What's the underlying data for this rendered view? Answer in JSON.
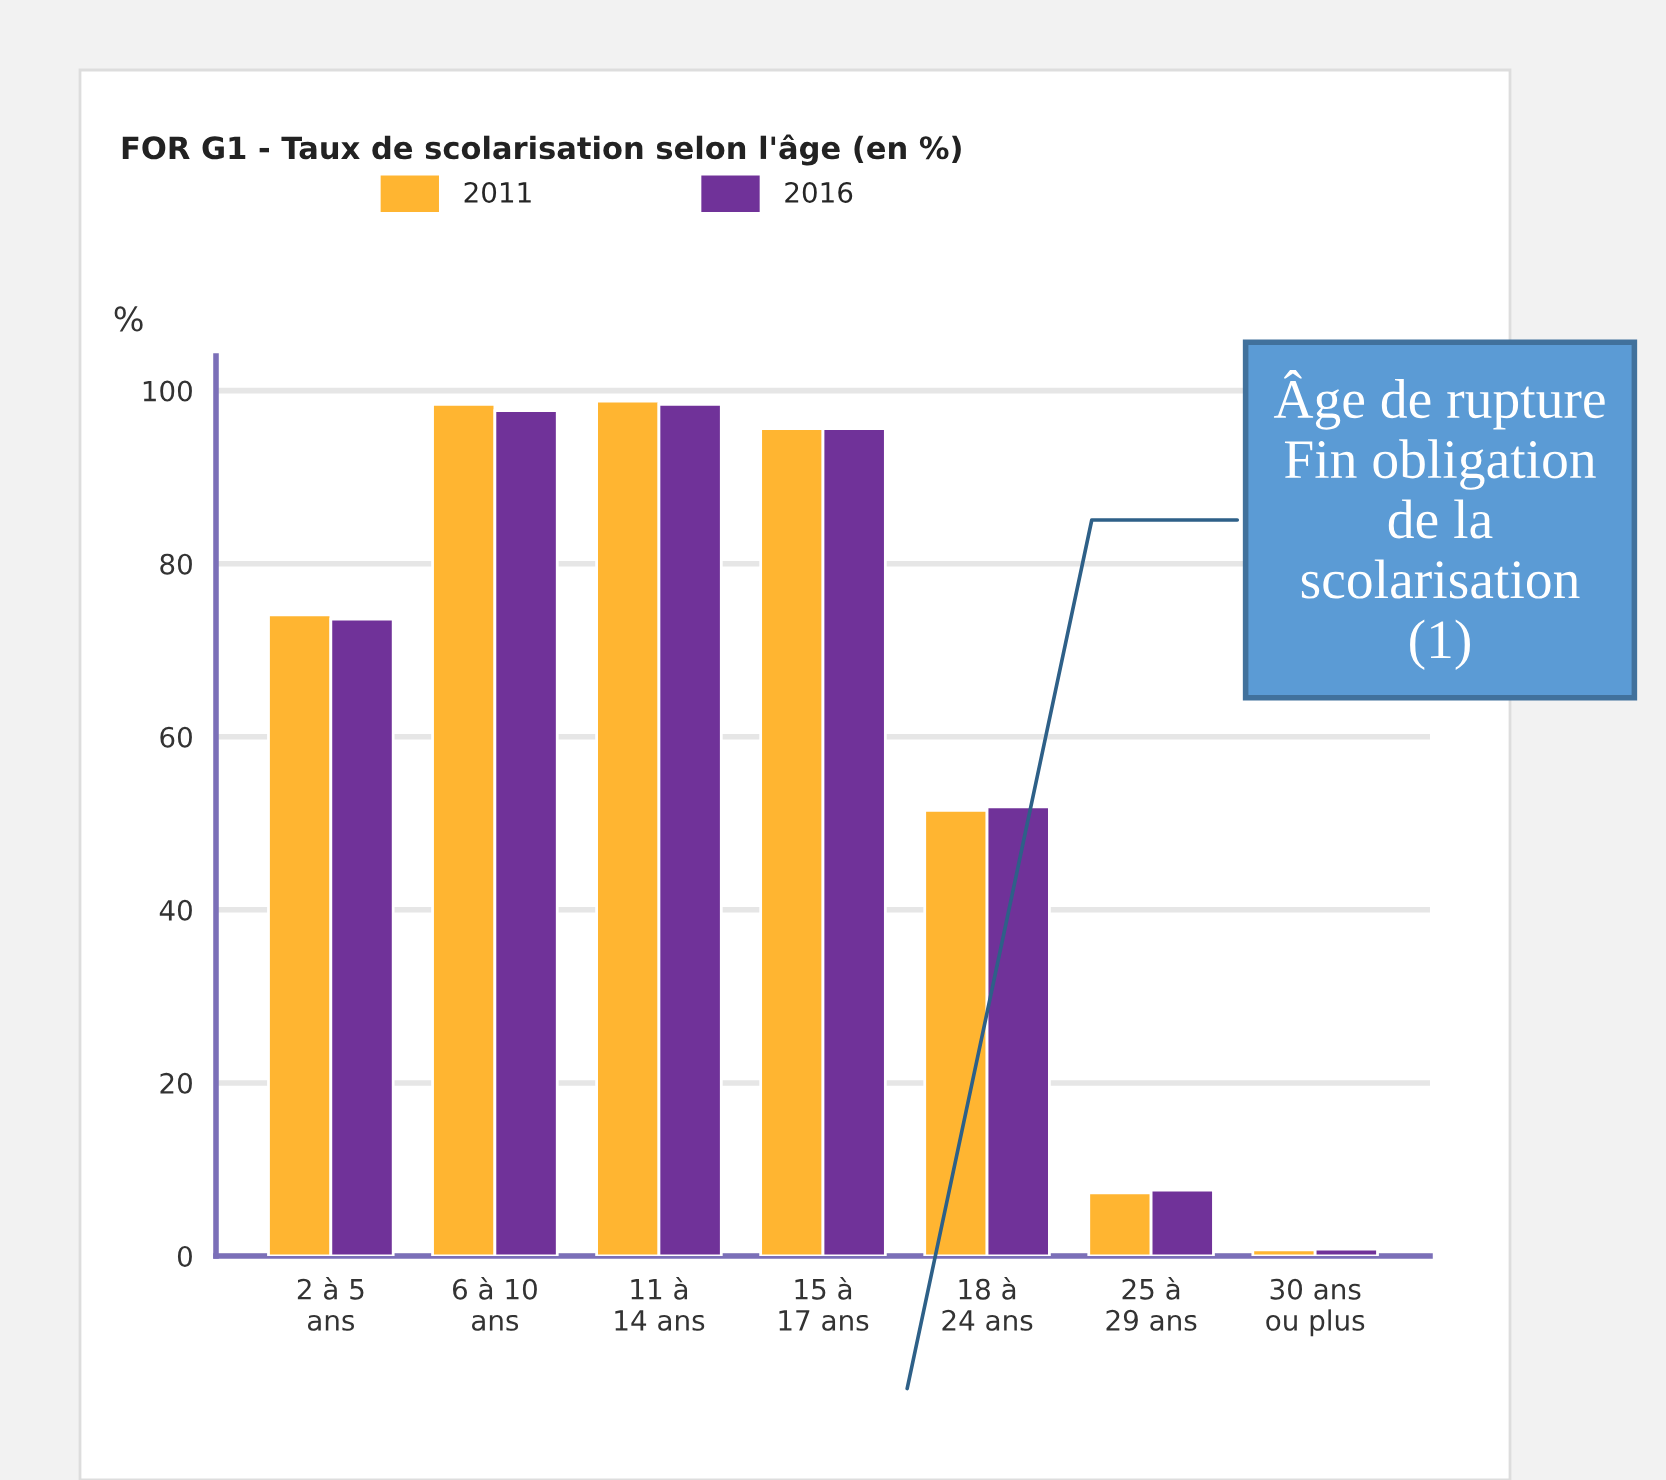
{
  "chart_data": {
    "type": "bar",
    "title": "FOR G1 - Taux de scolarisation selon l'âge (en %)",
    "ylabel": "%",
    "categories": [
      "2 à 5\nans",
      "6 à 10\nans",
      "11 à\n14 ans",
      "15 à\n17 ans",
      "18 à\n24 ans",
      "25 à\n29 ans",
      "30 ans\nou plus"
    ],
    "series": [
      {
        "name": "2011",
        "color": "#ffb531",
        "values": [
          74.1,
          98.4,
          98.8,
          95.6,
          51.5,
          7.3,
          0.7
        ]
      },
      {
        "name": "2016",
        "color": "#703299",
        "values": [
          73.6,
          97.7,
          98.4,
          95.6,
          51.9,
          7.6,
          0.8
        ]
      }
    ],
    "ylim": [
      0,
      104
    ],
    "yticks": [
      0,
      20,
      40,
      60,
      80,
      100
    ],
    "grid": "y",
    "legend": "top",
    "annotations": [
      "Âge de rupture\nFin obligation\nde la\nscolarisation\n(1)"
    ]
  }
}
